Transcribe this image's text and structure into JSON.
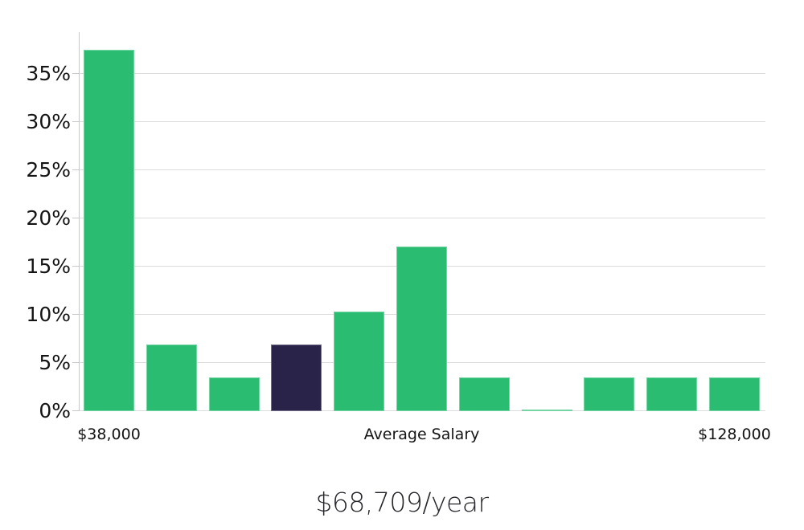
{
  "chart_data": {
    "type": "bar",
    "title": "$68,709/year",
    "xlabel": "",
    "ylabel": "",
    "grid": true,
    "legend": "none",
    "ylim": [
      0,
      39.3
    ],
    "y_ticks": [
      {
        "value": 0,
        "label": "0%"
      },
      {
        "value": 5,
        "label": "5%"
      },
      {
        "value": 10,
        "label": "10%"
      },
      {
        "value": 15,
        "label": "15%"
      },
      {
        "value": 20,
        "label": "20%"
      },
      {
        "value": 25,
        "label": "25%"
      },
      {
        "value": 30,
        "label": "30%"
      },
      {
        "value": 35,
        "label": "35%"
      }
    ],
    "x_tick_labels": [
      {
        "label": "$38,000",
        "bar_index": 0
      },
      {
        "label": "Average Salary",
        "bar_index": 5
      },
      {
        "label": "$128,000",
        "bar_index": 10
      }
    ],
    "values": [
      37.5,
      6.9,
      3.5,
      6.9,
      10.3,
      17.1,
      3.5,
      0.2,
      3.5,
      3.5,
      3.5
    ],
    "highlighted_bar_index": 3,
    "colors": {
      "bar": "#2abd72",
      "highlight": "#2a2349",
      "gridline": "#dcdcdc",
      "axis_text": "#141414",
      "title_text": "#26262b"
    }
  }
}
